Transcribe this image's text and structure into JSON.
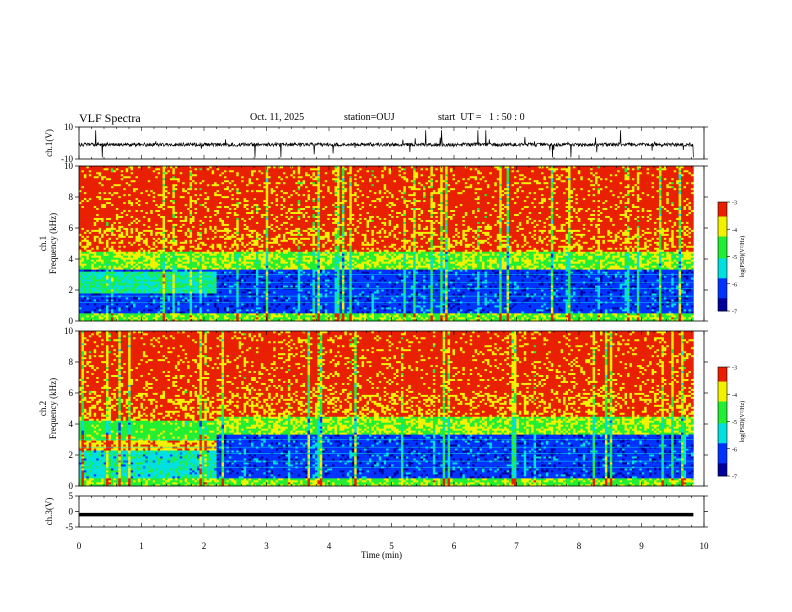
{
  "header": {
    "title": "VLF Spectra",
    "date": "Oct. 11, 2025",
    "station": "station=OUJ",
    "start": "start  UT =   1 : 50 : 0"
  },
  "colors": {
    "dark_blue": "#00009a",
    "blue": "#0033ff",
    "cyan": "#00e0e0",
    "green": "#22ee33",
    "yellow": "#f2f200",
    "red": "#e82000"
  },
  "chart_data": [
    {
      "type": "line",
      "ylabel": "ch.1(V)",
      "ylim": [
        -10,
        10
      ],
      "yticks": [
        "10",
        "-10"
      ],
      "xlim": [
        0,
        10
      ],
      "description_level": -1
    },
    {
      "type": "heatmap",
      "ylabel_line1": "ch.1",
      "ylabel_line2": "Frequency (kHz)",
      "ylim": [
        0,
        10
      ],
      "yticks": [
        "0",
        "2",
        "4",
        "6",
        "8",
        "10"
      ],
      "xlim": [
        0,
        10
      ],
      "colorbar": {
        "label": "log(PSD)(V²/Hz)",
        "ticks": [
          "-3",
          "-4",
          "-5",
          "-6",
          "-7"
        ],
        "range": [
          -7,
          -3
        ]
      }
    },
    {
      "type": "heatmap",
      "ylabel_line1": "ch.2",
      "ylabel_line2": "Frequency (kHz)",
      "ylim": [
        0,
        10
      ],
      "yticks": [
        "0",
        "2",
        "4",
        "6",
        "8",
        "10"
      ],
      "xlim": [
        0,
        10
      ],
      "colorbar": {
        "label": "log(PSD)(V²/Hz)",
        "ticks": [
          "-3",
          "-4",
          "-5",
          "-6",
          "-7"
        ],
        "range": [
          -7,
          -3
        ]
      }
    },
    {
      "type": "line",
      "ylabel": "ch.3(V)",
      "ylim": [
        -5,
        5
      ],
      "yticks": [
        "5",
        "0",
        "-5"
      ],
      "xlim": [
        0,
        10
      ],
      "level": -1
    }
  ],
  "xaxis": {
    "label": "Time (min)",
    "ticks": [
      "0",
      "1",
      "2",
      "3",
      "4",
      "5",
      "6",
      "7",
      "8",
      "9",
      "10"
    ],
    "data_end": 9.83
  }
}
